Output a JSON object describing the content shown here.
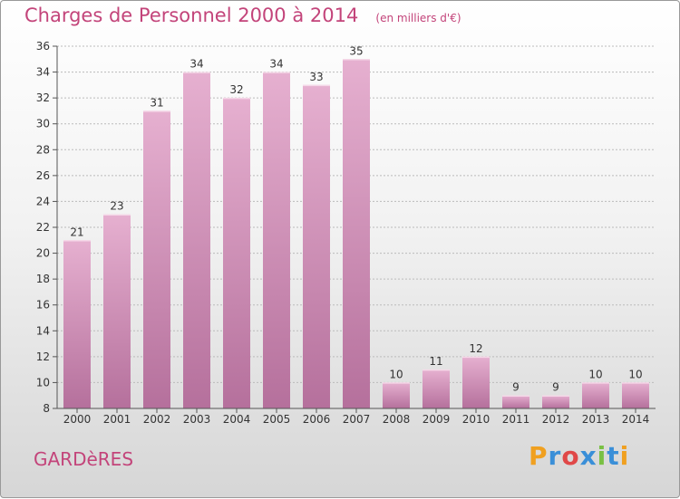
{
  "title": "Charges de Personnel 2000 à 2014",
  "unit_note": "(en milliers d'€)",
  "commune": "GARDèRES",
  "logo": {
    "letters": [
      "P",
      "r",
      "o",
      "x",
      "i",
      "t",
      "i"
    ],
    "colors": [
      "#f0a020",
      "#3a8fd8",
      "#e04848",
      "#3a8fd8",
      "#79c043",
      "#3a8fd8",
      "#f0a020"
    ]
  },
  "colors": {
    "bar_top": "#e6b0d0",
    "bar_bottom": "#b5709c",
    "text_accent": "#c3447a"
  },
  "chart_data": {
    "type": "bar",
    "categories": [
      "2000",
      "2001",
      "2002",
      "2003",
      "2004",
      "2005",
      "2006",
      "2007",
      "2008",
      "2009",
      "2010",
      "2011",
      "2012",
      "2013",
      "2014"
    ],
    "values": [
      21,
      23,
      31,
      34,
      32,
      34,
      33,
      35,
      10,
      11,
      12,
      9,
      9,
      10,
      10
    ],
    "ylim": [
      8,
      36
    ],
    "yticks": [
      8,
      10,
      12,
      14,
      16,
      18,
      20,
      22,
      24,
      26,
      28,
      30,
      32,
      34,
      36
    ],
    "grid": true,
    "title": "Charges de Personnel 2000 à 2014",
    "xlabel": "",
    "ylabel": ""
  }
}
